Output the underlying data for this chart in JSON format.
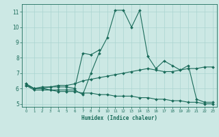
{
  "xlabel": "Humidex (Indice chaleur)",
  "x_values": [
    0,
    1,
    2,
    3,
    4,
    5,
    6,
    7,
    8,
    9,
    10,
    11,
    12,
    13,
    14,
    15,
    16,
    17,
    18,
    19,
    20,
    21,
    22,
    23
  ],
  "line1": [
    6.3,
    6.0,
    6.0,
    5.9,
    5.9,
    5.9,
    5.9,
    5.6,
    7.0,
    8.3,
    9.3,
    11.1,
    11.1,
    10.0,
    11.1,
    8.1,
    7.3,
    7.8,
    7.5,
    7.2,
    7.5,
    5.3,
    5.1,
    5.1
  ],
  "line2": [
    6.3,
    6.0,
    6.0,
    6.1,
    6.1,
    6.1,
    6.0,
    8.3,
    8.2,
    8.5,
    null,
    null,
    null,
    null,
    null,
    null,
    null,
    null,
    null,
    null,
    null,
    null,
    null,
    null
  ],
  "line3": [
    6.2,
    6.0,
    6.1,
    6.1,
    6.2,
    6.2,
    6.3,
    6.5,
    6.6,
    6.7,
    6.8,
    6.9,
    7.0,
    7.1,
    7.2,
    7.3,
    7.2,
    7.1,
    7.1,
    7.2,
    7.3,
    7.3,
    7.4,
    7.4
  ],
  "line4": [
    6.2,
    5.9,
    5.9,
    5.9,
    5.8,
    5.8,
    5.8,
    5.7,
    5.7,
    5.6,
    5.6,
    5.5,
    5.5,
    5.5,
    5.4,
    5.4,
    5.3,
    5.3,
    5.2,
    5.2,
    5.1,
    5.1,
    5.0,
    5.0
  ],
  "bg_color": "#cce8e4",
  "grid_color": "#aad4d0",
  "line_color": "#1a6b5a",
  "ylim": [
    4.8,
    11.5
  ],
  "xlim": [
    -0.5,
    23.5
  ],
  "yticks": [
    5,
    6,
    7,
    8,
    9,
    10,
    11
  ],
  "xticks": [
    0,
    1,
    2,
    3,
    4,
    5,
    6,
    7,
    8,
    9,
    10,
    11,
    12,
    13,
    14,
    15,
    16,
    17,
    18,
    19,
    20,
    21,
    22,
    23
  ]
}
